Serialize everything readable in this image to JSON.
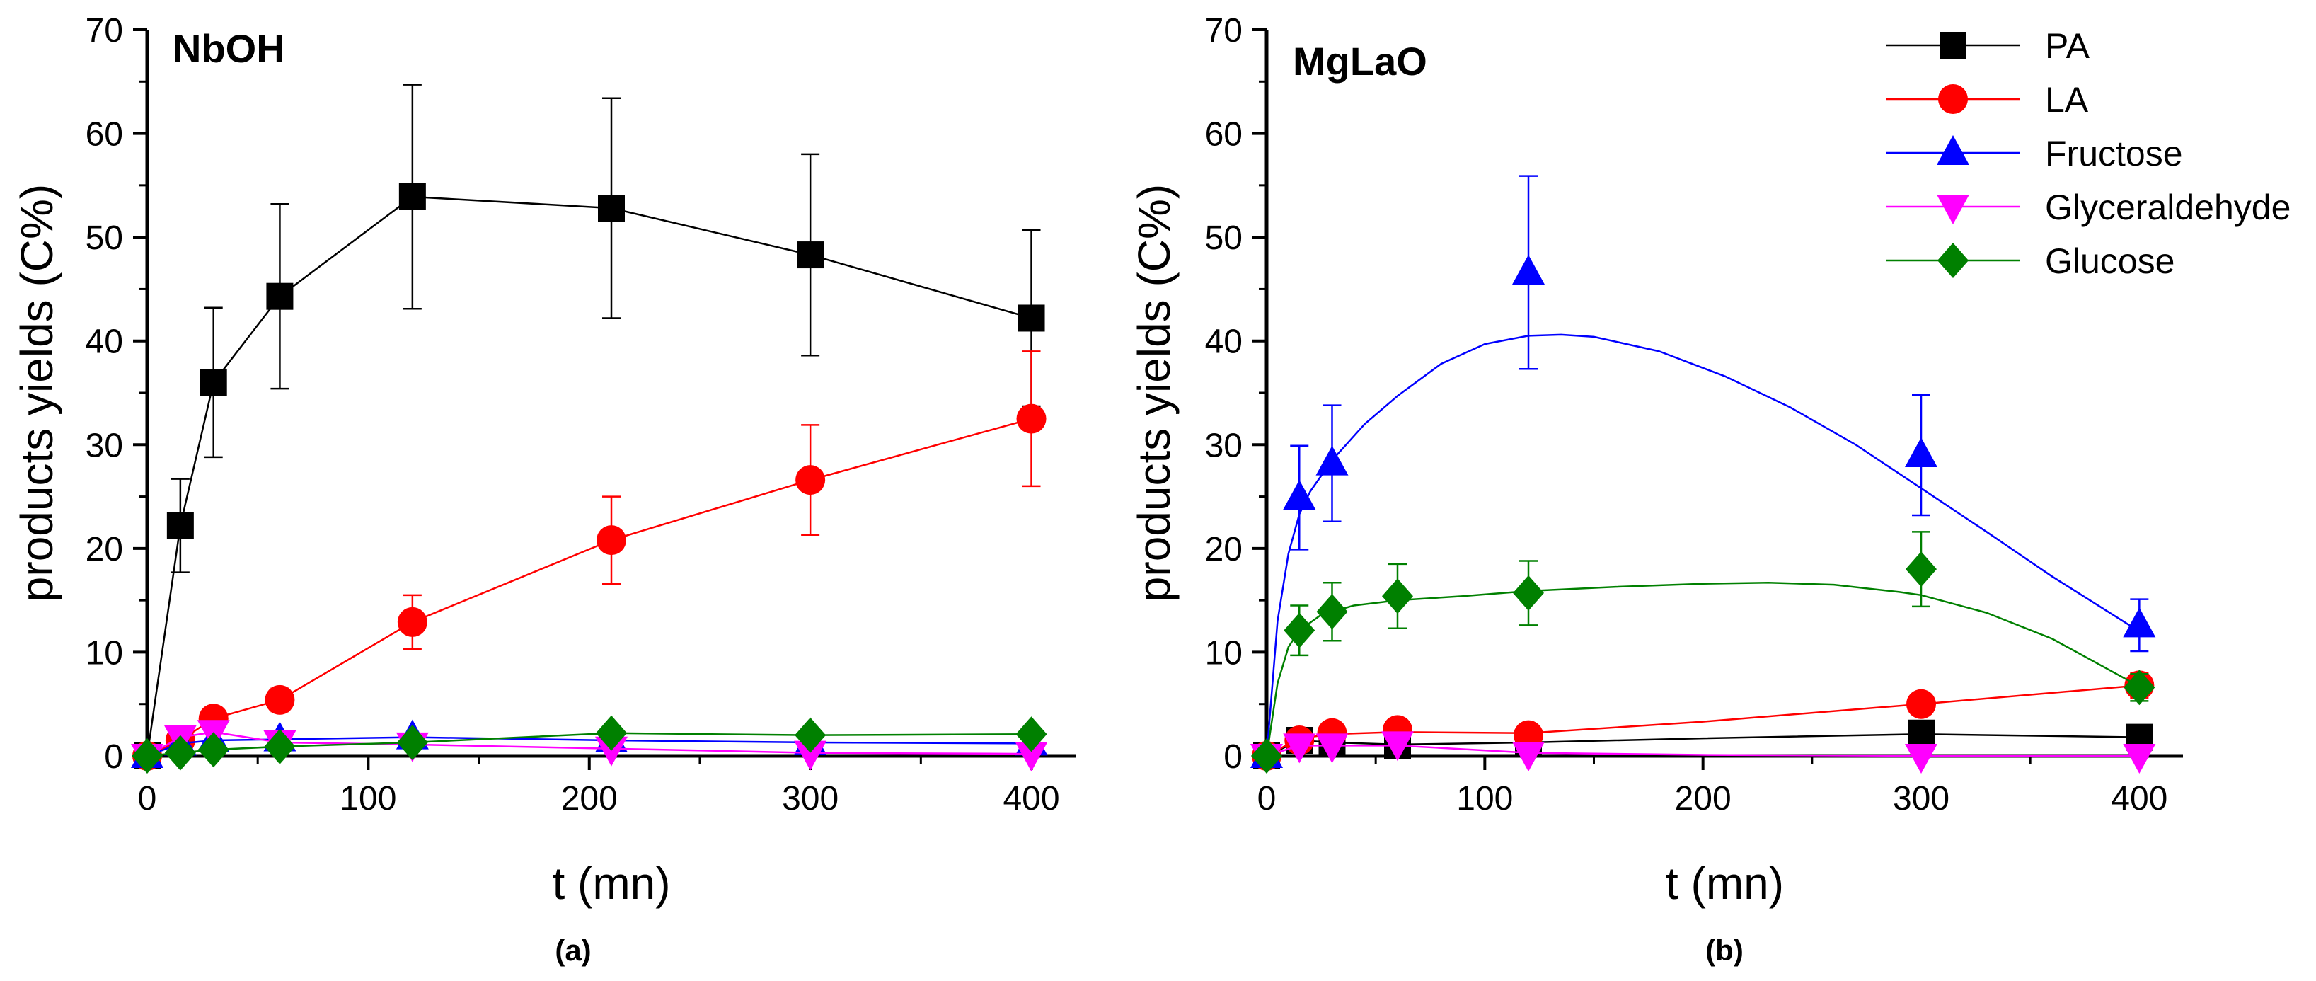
{
  "chart_data": [
    {
      "type": "line",
      "title": "NbOH",
      "caption": "(a)",
      "xlabel": "t (mn)",
      "ylabel": "products yields (C%)",
      "xlim": [
        0,
        420
      ],
      "ylim": [
        0,
        70
      ],
      "xticks": [
        0,
        100,
        200,
        300,
        400
      ],
      "yticks": [
        0,
        10,
        20,
        30,
        40,
        50,
        60,
        70
      ],
      "x": [
        0,
        15,
        30,
        60,
        120,
        210,
        300,
        400
      ],
      "series": [
        {
          "name": "PA",
          "color": "#000000",
          "marker": "square",
          "values": [
            0,
            22.2,
            36,
            44.3,
            53.9,
            52.8,
            48.3,
            42.2
          ],
          "errors": [
            0,
            4.5,
            7.2,
            8.9,
            10.8,
            10.6,
            9.7,
            8.5
          ]
        },
        {
          "name": "LA",
          "color": "#ff0000",
          "marker": "circle",
          "values": [
            0,
            1.5,
            3.6,
            5.4,
            12.9,
            20.8,
            26.6,
            32.5
          ],
          "errors": [
            0,
            0.3,
            0.7,
            1.1,
            2.6,
            4.2,
            5.3,
            6.5
          ]
        },
        {
          "name": "Fructose",
          "color": "#0000ff",
          "marker": "triangle-up",
          "values": [
            0,
            1.2,
            1.5,
            1.6,
            1.8,
            1.5,
            1.3,
            1.2
          ],
          "errors": [
            0,
            0,
            0,
            0,
            0,
            0,
            0,
            0
          ]
        },
        {
          "name": "Glyceraldehyde",
          "color": "#ff00ff",
          "marker": "triangle-down",
          "values": [
            0,
            1.8,
            2.3,
            1.3,
            1.1,
            0.7,
            0.3,
            0.2
          ],
          "errors": [
            0,
            0,
            0,
            0,
            0,
            0,
            0,
            0
          ]
        },
        {
          "name": "Glucose",
          "color": "#008000",
          "marker": "diamond",
          "values": [
            0,
            0.3,
            0.6,
            0.9,
            1.3,
            2.2,
            2.0,
            2.1
          ],
          "errors": [
            0,
            0,
            0,
            0,
            0,
            0,
            0,
            0
          ]
        }
      ]
    },
    {
      "type": "line",
      "title": "MgLaO",
      "caption": "(b)",
      "xlabel": "t (mn)",
      "ylabel": "products yields (C%)",
      "xlim": [
        0,
        420
      ],
      "ylim": [
        0,
        70
      ],
      "xticks": [
        0,
        100,
        200,
        300,
        400
      ],
      "yticks": [
        0,
        10,
        20,
        30,
        40,
        50,
        60,
        70
      ],
      "legend_position": "top-right",
      "series": [
        {
          "name": "PA",
          "color": "#000000",
          "marker": "square",
          "x": [
            0,
            15,
            30,
            60,
            120,
            300,
            400
          ],
          "values": [
            0,
            1.5,
            1.3,
            1.0,
            1.2,
            2.2,
            1.8
          ],
          "errors": [
            0,
            0,
            0,
            0,
            0,
            0,
            0
          ],
          "fit": [
            [
              0,
              0
            ],
            [
              15,
              1.5
            ],
            [
              30,
              1.3
            ],
            [
              60,
              1.1
            ],
            [
              120,
              1.3
            ],
            [
              200,
              1.7
            ],
            [
              300,
              2.1
            ],
            [
              400,
              1.8
            ]
          ]
        },
        {
          "name": "LA",
          "color": "#ff0000",
          "marker": "circle",
          "x": [
            0,
            15,
            30,
            60,
            120,
            300,
            400
          ],
          "values": [
            0,
            1.5,
            2.2,
            2.5,
            2.0,
            5.0,
            6.8
          ],
          "errors": [
            0,
            0,
            0,
            0,
            0,
            0.4,
            1.2
          ],
          "fit": [
            [
              0,
              0
            ],
            [
              15,
              1.7
            ],
            [
              30,
              2.1
            ],
            [
              60,
              2.3
            ],
            [
              120,
              2.2
            ],
            [
              200,
              3.3
            ],
            [
              300,
              5.0
            ],
            [
              400,
              6.8
            ]
          ]
        },
        {
          "name": "Fructose",
          "color": "#0000ff",
          "marker": "triangle-up",
          "x": [
            0,
            15,
            30,
            120,
            300,
            400
          ],
          "values": [
            0,
            24.9,
            28.2,
            46.6,
            29.0,
            12.6
          ],
          "errors": [
            0,
            5.0,
            5.6,
            9.3,
            5.8,
            2.5
          ],
          "fit": [
            [
              0,
              0
            ],
            [
              5,
              13
            ],
            [
              10,
              19.5
            ],
            [
              15,
              23.3
            ],
            [
              20,
              25.5
            ],
            [
              30,
              28.5
            ],
            [
              45,
              32
            ],
            [
              60,
              34.7
            ],
            [
              80,
              37.8
            ],
            [
              100,
              39.7
            ],
            [
              120,
              40.5
            ],
            [
              135,
              40.6
            ],
            [
              150,
              40.4
            ],
            [
              180,
              39.0
            ],
            [
              210,
              36.6
            ],
            [
              240,
              33.6
            ],
            [
              270,
              30.0
            ],
            [
              300,
              25.8
            ],
            [
              330,
              21.6
            ],
            [
              360,
              17.3
            ],
            [
              400,
              12.0
            ]
          ]
        },
        {
          "name": "Glyceraldehyde",
          "color": "#ff00ff",
          "marker": "triangle-down",
          "x": [
            0,
            15,
            30,
            60,
            120,
            300,
            400
          ],
          "values": [
            0,
            1.0,
            1.0,
            1.2,
            0.2,
            0.0,
            0.0
          ],
          "errors": [
            0,
            0,
            0,
            0,
            0,
            0,
            0
          ],
          "fit": [
            [
              0,
              0
            ],
            [
              15,
              1.0
            ],
            [
              30,
              1.0
            ],
            [
              60,
              1.0
            ],
            [
              120,
              0.3
            ],
            [
              200,
              0.1
            ],
            [
              300,
              0
            ],
            [
              400,
              0
            ]
          ]
        },
        {
          "name": "Glucose",
          "color": "#008000",
          "marker": "diamond",
          "x": [
            0,
            15,
            30,
            60,
            120,
            300,
            400
          ],
          "values": [
            0,
            12.1,
            13.9,
            15.4,
            15.7,
            18.0,
            6.6
          ],
          "errors": [
            0,
            2.4,
            2.8,
            3.1,
            3.1,
            3.6,
            1.3
          ],
          "fit": [
            [
              0,
              0
            ],
            [
              5,
              7
            ],
            [
              10,
              10.5
            ],
            [
              15,
              12.1
            ],
            [
              25,
              13.6
            ],
            [
              40,
              14.5
            ],
            [
              60,
              15.0
            ],
            [
              90,
              15.4
            ],
            [
              120,
              15.9
            ],
            [
              160,
              16.3
            ],
            [
              200,
              16.6
            ],
            [
              230,
              16.7
            ],
            [
              260,
              16.5
            ],
            [
              290,
              15.8
            ],
            [
              300,
              15.5
            ],
            [
              330,
              13.8
            ],
            [
              360,
              11.3
            ],
            [
              400,
              6.7
            ]
          ]
        }
      ]
    }
  ]
}
